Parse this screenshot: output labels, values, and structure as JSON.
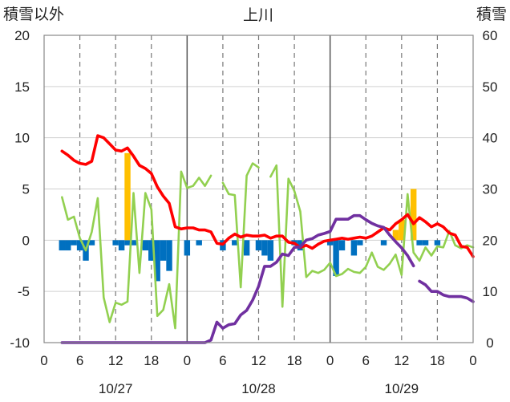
{
  "chart_data": {
    "type": "combo",
    "title": "上川",
    "left_axis_label": "積雪以外",
    "right_axis_label": "積雪",
    "left_ylim": [
      -10,
      20
    ],
    "right_ylim": [
      0,
      60
    ],
    "left_ticks": [
      "20",
      "15",
      "10",
      "5",
      "0",
      "-5",
      "-10"
    ],
    "right_ticks": [
      "60",
      "50",
      "40",
      "30",
      "20",
      "10",
      "0"
    ],
    "xlim": [
      0,
      72
    ],
    "x_tick_values": [
      0,
      6,
      12,
      18,
      24,
      30,
      36,
      42,
      48,
      54,
      60,
      66,
      72
    ],
    "x_tick_labels": [
      "0",
      "6",
      "12",
      "18",
      "0",
      "6",
      "12",
      "18",
      "0",
      "6",
      "12",
      "18",
      "0"
    ],
    "date_labels": [
      {
        "x": 12,
        "label": "10/27"
      },
      {
        "x": 36,
        "label": "10/28"
      },
      {
        "x": 60,
        "label": "10/29"
      }
    ],
    "colors": {
      "red_line": "#ff0000",
      "green_line": "#92d050",
      "purple_line": "#7030a0",
      "blue_bars": "#0070c0",
      "orange_bars": "#ffc000"
    },
    "blue_bars": [
      {
        "x": 3,
        "y": -1
      },
      {
        "x": 4,
        "y": -1
      },
      {
        "x": 5,
        "y": -0.5
      },
      {
        "x": 6,
        "y": -1
      },
      {
        "x": 7,
        "y": -2
      },
      {
        "x": 8,
        "y": -0.5
      },
      {
        "x": 12,
        "y": -0.5
      },
      {
        "x": 13,
        "y": -1
      },
      {
        "x": 14,
        "y": -0.5
      },
      {
        "x": 15,
        "y": -0.5
      },
      {
        "x": 17,
        "y": -1
      },
      {
        "x": 18,
        "y": -2
      },
      {
        "x": 19,
        "y": -4
      },
      {
        "x": 20,
        "y": -2
      },
      {
        "x": 21,
        "y": -3
      },
      {
        "x": 24,
        "y": -1.5
      },
      {
        "x": 26,
        "y": -0.5
      },
      {
        "x": 30,
        "y": -1
      },
      {
        "x": 32,
        "y": -0.5
      },
      {
        "x": 34,
        "y": -1.5
      },
      {
        "x": 36,
        "y": -1
      },
      {
        "x": 37,
        "y": -1.5
      },
      {
        "x": 38,
        "y": -2
      },
      {
        "x": 42,
        "y": -0.5
      },
      {
        "x": 43,
        "y": -1
      },
      {
        "x": 48,
        "y": -0.5
      },
      {
        "x": 49,
        "y": -3.5
      },
      {
        "x": 50,
        "y": -1
      },
      {
        "x": 52,
        "y": -1.5
      },
      {
        "x": 53,
        "y": -0.5
      },
      {
        "x": 57,
        "y": -0.5
      },
      {
        "x": 63,
        "y": -0.5
      },
      {
        "x": 64,
        "y": -0.5
      },
      {
        "x": 66,
        "y": -0.5
      }
    ],
    "orange_bars": [
      {
        "x": 14,
        "y": 8.5
      },
      {
        "x": 59,
        "y": 1
      },
      {
        "x": 60,
        "y": 2
      },
      {
        "x": 62,
        "y": 5
      }
    ],
    "red_line": [
      [
        3,
        8.7
      ],
      [
        4,
        8.3
      ],
      [
        5,
        7.8
      ],
      [
        6,
        7.5
      ],
      [
        7,
        7.4
      ],
      [
        8,
        7.7
      ],
      [
        9,
        10.2
      ],
      [
        10,
        10.0
      ],
      [
        11,
        9.4
      ],
      [
        12,
        8.8
      ],
      [
        13,
        8.7
      ],
      [
        14,
        9.0
      ],
      [
        15,
        8.2
      ],
      [
        16,
        7.3
      ],
      [
        17,
        7.0
      ],
      [
        18,
        6.5
      ],
      [
        19,
        5.2
      ],
      [
        20,
        4.3
      ],
      [
        21,
        3.6
      ],
      [
        22,
        1.3
      ],
      [
        23,
        1.1
      ],
      [
        24,
        1.2
      ],
      [
        25,
        1.2
      ],
      [
        26,
        1.0
      ],
      [
        27,
        1.0
      ],
      [
        28,
        0.8
      ],
      [
        29,
        -0.3
      ],
      [
        30,
        -0.4
      ],
      [
        31,
        0.2
      ],
      [
        32,
        0.6
      ],
      [
        33,
        0.3
      ],
      [
        34,
        0.5
      ],
      [
        35,
        0.4
      ],
      [
        36,
        0.4
      ],
      [
        37,
        0.5
      ],
      [
        38,
        0.2
      ],
      [
        39,
        0.4
      ],
      [
        40,
        0.4
      ],
      [
        41,
        -0.2
      ],
      [
        42,
        -0.3
      ],
      [
        43,
        -0.7
      ],
      [
        44,
        -0.5
      ],
      [
        45,
        -0.8
      ],
      [
        46,
        -0.4
      ],
      [
        47,
        -0.1
      ],
      [
        48,
        0
      ],
      [
        49,
        0.1
      ],
      [
        50,
        0.2
      ],
      [
        51,
        0.1
      ],
      [
        52,
        0.2
      ],
      [
        53,
        0.3
      ],
      [
        54,
        0.2
      ],
      [
        55,
        0.4
      ],
      [
        56,
        0.8
      ],
      [
        57,
        1.2
      ],
      [
        58,
        1.0
      ],
      [
        59,
        1.6
      ],
      [
        60,
        2.0
      ],
      [
        61,
        2.5
      ],
      [
        62,
        1.6
      ],
      [
        63,
        2.2
      ],
      [
        64,
        1.8
      ],
      [
        65,
        1.3
      ],
      [
        66,
        1.6
      ],
      [
        67,
        1.3
      ],
      [
        68,
        0.7
      ],
      [
        69,
        0.5
      ],
      [
        70,
        -0.6
      ],
      [
        71,
        -0.7
      ],
      [
        72,
        -1.6
      ]
    ],
    "green_line": [
      [
        [
          3,
          4.2
        ],
        [
          4,
          2.0
        ],
        [
          5,
          2.3
        ],
        [
          6,
          0.2
        ],
        [
          7,
          -1.0
        ],
        [
          8,
          0.8
        ],
        [
          9,
          4.1
        ],
        [
          10,
          -5.6
        ],
        [
          11,
          -8.0
        ],
        [
          12,
          -6.1
        ],
        [
          13,
          -6.3
        ],
        [
          14,
          -6.0
        ],
        [
          15,
          4.6
        ],
        [
          16,
          -3.2
        ],
        [
          17,
          4.6
        ],
        [
          18,
          3.0
        ],
        [
          19,
          -7.4
        ],
        [
          20,
          -6.8
        ],
        [
          21,
          -4.3
        ],
        [
          22,
          -8.6
        ],
        [
          23,
          6.7
        ],
        [
          24,
          5.1
        ],
        [
          25,
          5.3
        ],
        [
          26,
          6.1
        ],
        [
          27,
          5.3
        ],
        [
          28,
          6.3
        ]
      ],
      [
        [
          30,
          5.6
        ],
        [
          31,
          4.5
        ],
        [
          32,
          4.4
        ],
        [
          33,
          -4.6
        ],
        [
          34,
          6.3
        ],
        [
          35,
          7.5
        ],
        [
          36,
          7.1
        ]
      ],
      [
        [
          38,
          6.2
        ],
        [
          39,
          7.3
        ],
        [
          40,
          -6.5
        ],
        [
          41,
          6.0
        ],
        [
          42,
          4.8
        ],
        [
          43,
          2.8
        ],
        [
          44,
          -3.6
        ],
        [
          45,
          -3.0
        ],
        [
          46,
          -3.2
        ],
        [
          47,
          -2.9
        ],
        [
          48,
          -2.2
        ],
        [
          49,
          -3.5
        ],
        [
          50,
          -3.3
        ],
        [
          51,
          -2.8
        ],
        [
          52,
          -3.1
        ],
        [
          53,
          -3.2
        ],
        [
          54,
          -2.6
        ],
        [
          55,
          -1.2
        ],
        [
          56,
          -2.6
        ],
        [
          57,
          -2.9
        ],
        [
          58,
          -2.3
        ],
        [
          59,
          -1.4
        ],
        [
          60,
          -3.4
        ],
        [
          61,
          4.5
        ],
        [
          62,
          -1.2
        ],
        [
          63,
          -2.0
        ],
        [
          64,
          -0.7
        ],
        [
          65,
          -1.5
        ],
        [
          66,
          -0.6
        ],
        [
          67,
          -0.7
        ],
        [
          68,
          0.9
        ],
        [
          69,
          -0.5
        ],
        [
          70,
          -0.8
        ],
        [
          71,
          -0.5
        ],
        [
          72,
          -0.7
        ]
      ]
    ],
    "purple_line": [
      [
        [
          3,
          0
        ],
        [
          24,
          0
        ],
        [
          27,
          0
        ],
        [
          28,
          0.5
        ],
        [
          29,
          4
        ],
        [
          30,
          2.8
        ],
        [
          31,
          3.5
        ],
        [
          32,
          3.7
        ],
        [
          33,
          5.4
        ],
        [
          34,
          6.3
        ],
        [
          35,
          8.3
        ],
        [
          36,
          11.0
        ],
        [
          37,
          14.9
        ],
        [
          38,
          14.9
        ],
        [
          39,
          15.7
        ],
        [
          40,
          17.3
        ],
        [
          41,
          17.0
        ],
        [
          42,
          18.6
        ],
        [
          43,
          18.7
        ],
        [
          44,
          20.0
        ],
        [
          45,
          20.3
        ],
        [
          46,
          21.0
        ],
        [
          47,
          21.3
        ],
        [
          48,
          21.7
        ],
        [
          49,
          24.1
        ],
        [
          50,
          24.1
        ],
        [
          51,
          24.1
        ],
        [
          52,
          24.8
        ],
        [
          53,
          24.8
        ],
        [
          54,
          24.0
        ],
        [
          55,
          23.3
        ],
        [
          56,
          22.8
        ],
        [
          57,
          22.5
        ],
        [
          58,
          21.0
        ],
        [
          59,
          19.7
        ],
        [
          60,
          18.5
        ],
        [
          61,
          17.0
        ],
        [
          62,
          15.0
        ]
      ],
      [
        [
          63,
          12.0
        ],
        [
          64,
          11.3
        ],
        [
          65,
          10.0
        ],
        [
          66,
          10.0
        ],
        [
          67,
          9.3
        ],
        [
          68,
          9.0
        ],
        [
          69,
          9.0
        ],
        [
          70,
          9.0
        ],
        [
          71,
          8.7
        ],
        [
          72,
          8.0
        ]
      ]
    ]
  }
}
